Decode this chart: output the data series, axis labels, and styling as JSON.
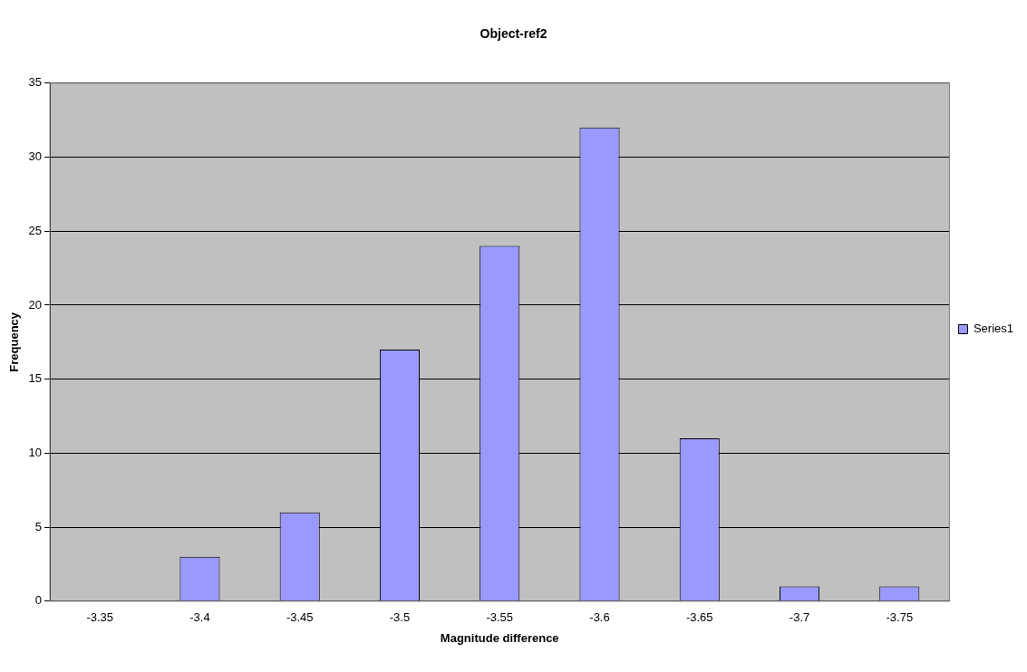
{
  "chart_data": {
    "type": "bar",
    "title": "Object-ref2",
    "xlabel": "Magnitude difference",
    "ylabel": "Frequency",
    "categories": [
      "-3.35",
      "-3.4",
      "-3.45",
      "-3.5",
      "-3.55",
      "-3.6",
      "-3.65",
      "-3.7",
      "-3.75"
    ],
    "series": [
      {
        "name": "Series1",
        "color": "#9999ff",
        "values": [
          0,
          3,
          6,
          17,
          24,
          32,
          11,
          1,
          1
        ]
      }
    ],
    "ylim": [
      0,
      35
    ],
    "yticks": [
      0,
      5,
      10,
      15,
      20,
      25,
      30,
      35
    ],
    "grid": "y",
    "legend": "right"
  }
}
